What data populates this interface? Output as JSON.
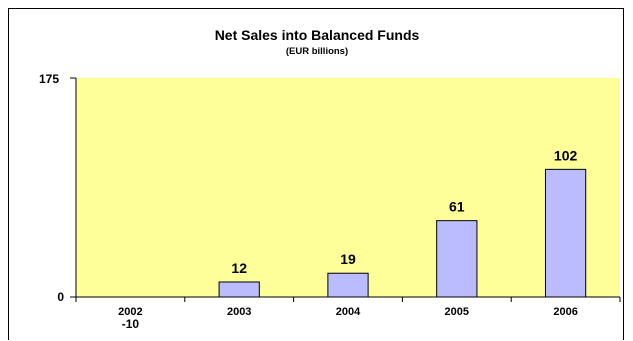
{
  "chart_data": {
    "type": "bar",
    "title": "Net Sales into Balanced Funds",
    "subtitle": "(EUR billions)",
    "xlabel": "",
    "ylabel": "",
    "categories": [
      "2002",
      "2003",
      "2004",
      "2005",
      "2006"
    ],
    "values": [
      -10,
      12,
      19,
      61,
      102
    ],
    "data_labels": [
      "-10",
      "12",
      "19",
      "61",
      "102"
    ],
    "ylim": [
      0,
      175
    ],
    "yticks": [
      "0",
      "175"
    ],
    "grid": false,
    "legend": "none",
    "plot_bg_color": "#FFFF99",
    "bar_color": "#BBBBFF",
    "bar_edge_color": "#000000"
  }
}
